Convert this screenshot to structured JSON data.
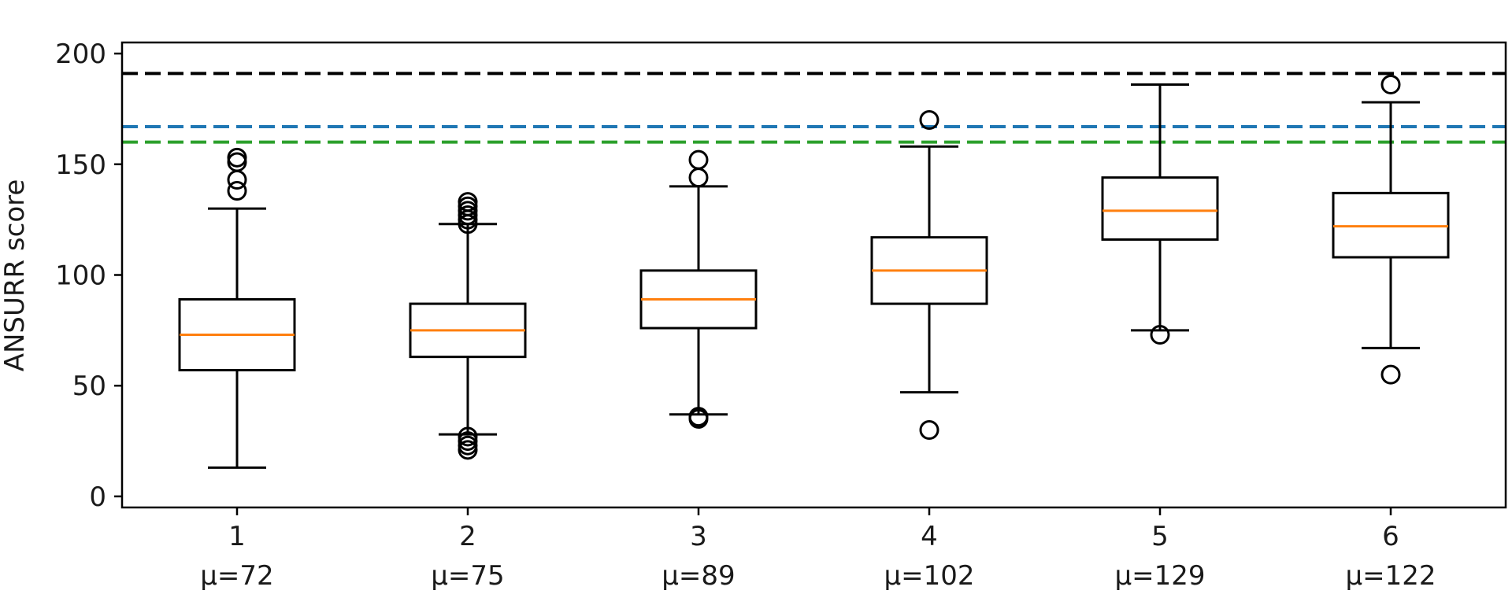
{
  "chart_data": {
    "type": "box",
    "title": "",
    "xlabel": "",
    "ylabel": "ANSURR score",
    "ylim": [
      -5,
      205
    ],
    "yticks": [
      0,
      50,
      100,
      150,
      200
    ],
    "grid": false,
    "reference_lines": [
      {
        "y": 191,
        "color": "#000000",
        "style": "dashed"
      },
      {
        "y": 167,
        "color": "#1f77b4",
        "style": "dashed"
      },
      {
        "y": 160,
        "color": "#2ca02c",
        "style": "dashed"
      }
    ],
    "median_color": "#ff7f0e",
    "boxes": [
      {
        "category": "1",
        "mean_label": "μ=72",
        "whisker_low": 13,
        "q1": 57,
        "median": 73,
        "q3": 89,
        "whisker_high": 130,
        "outliers": [
          138,
          143,
          151,
          153
        ]
      },
      {
        "category": "2",
        "mean_label": "μ=75",
        "whisker_low": 28,
        "q1": 63,
        "median": 75,
        "q3": 87,
        "whisker_high": 123,
        "outliers": [
          21,
          23,
          25,
          27,
          123,
          125,
          127,
          129,
          131,
          133
        ]
      },
      {
        "category": "3",
        "mean_label": "μ=89",
        "whisker_low": 37,
        "q1": 76,
        "median": 89,
        "q3": 102,
        "whisker_high": 140,
        "outliers": [
          35,
          36,
          144,
          152
        ]
      },
      {
        "category": "4",
        "mean_label": "μ=102",
        "whisker_low": 47,
        "q1": 87,
        "median": 102,
        "q3": 117,
        "whisker_high": 158,
        "outliers": [
          30,
          170
        ]
      },
      {
        "category": "5",
        "mean_label": "μ=129",
        "whisker_low": 75,
        "q1": 116,
        "median": 129,
        "q3": 144,
        "whisker_high": 186,
        "outliers": [
          73
        ]
      },
      {
        "category": "6",
        "mean_label": "μ=122",
        "whisker_low": 67,
        "q1": 108,
        "median": 122,
        "q3": 137,
        "whisker_high": 178,
        "outliers": [
          55,
          186
        ]
      }
    ]
  }
}
